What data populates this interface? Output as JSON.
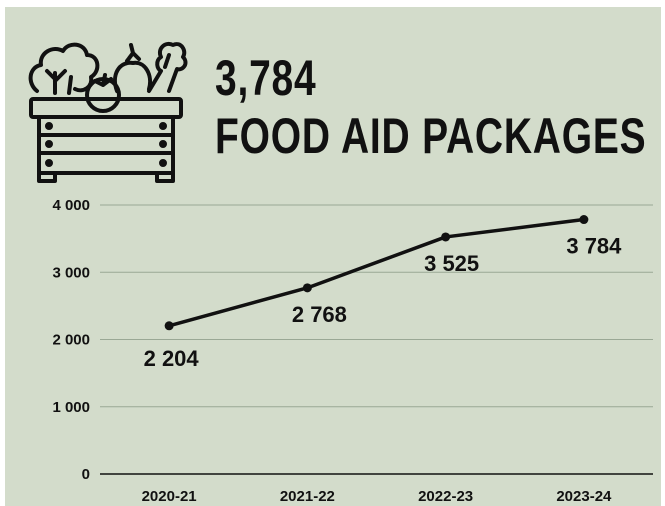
{
  "header": {
    "headline_value": "3,784",
    "headline_label": "FOOD AID PACKAGES",
    "icon": "vegetable-crate-icon"
  },
  "colors": {
    "background": "#d3dccb",
    "line": "#111111",
    "grid": "#9aa895",
    "text": "#111111"
  },
  "chart_data": {
    "type": "line",
    "title": "",
    "xlabel": "",
    "ylabel": "",
    "categories": [
      "2020-21",
      "2021-22",
      "2022-23",
      "2023-24"
    ],
    "series": [
      {
        "values": [
          2204,
          2768,
          3525,
          3784
        ]
      }
    ],
    "data_labels": [
      "2 204",
      "2 768",
      "3 525",
      "3 784"
    ],
    "ylim": [
      0,
      4000
    ],
    "yticks": [
      0,
      1000,
      2000,
      3000,
      4000
    ],
    "ytick_labels": [
      "0",
      "1 000",
      "2 000",
      "3 000",
      "4 000"
    ],
    "grid": true,
    "legend": "none"
  }
}
